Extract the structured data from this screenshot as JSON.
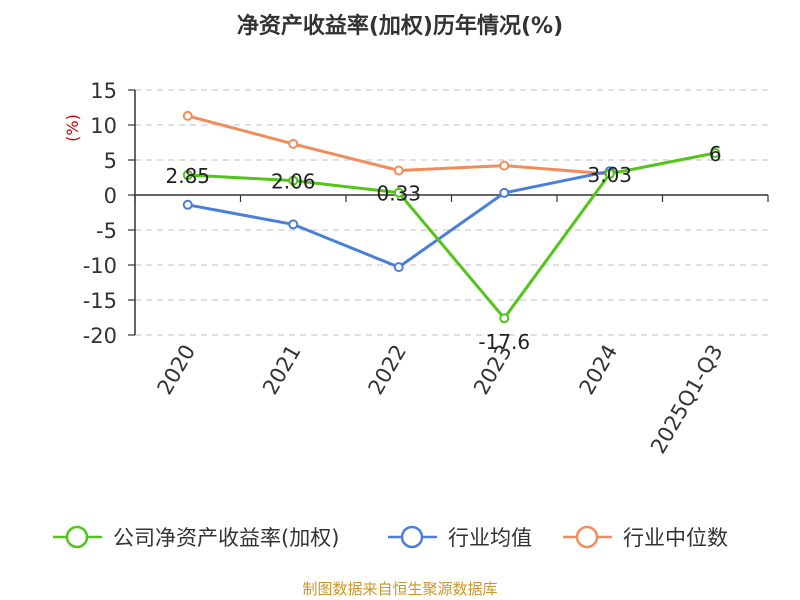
{
  "chart_data": {
    "type": "line",
    "title": "净资产收益率(加权)历年情况(%)",
    "ylabel": "(%)",
    "xlabel": "",
    "categories": [
      "2020",
      "2021",
      "2022",
      "2023",
      "2024",
      "2025Q1-Q3"
    ],
    "ylim": [
      -20,
      15
    ],
    "yticks": [
      15,
      10,
      5,
      0,
      -5,
      -10,
      -15,
      -20
    ],
    "grid": true,
    "legend_position": "bottom",
    "series": [
      {
        "name": "公司净资产收益率(加权)",
        "color": "#52c41a",
        "values": [
          2.85,
          2.06,
          0.33,
          -17.6,
          3.03,
          6
        ],
        "data_labels": [
          "2.85",
          "2.06",
          "0.33",
          "-17.6",
          "3.03",
          "6"
        ]
      },
      {
        "name": "行业均值",
        "color": "#4a7fd9",
        "values": [
          -1.4,
          -4.2,
          -10.3,
          0.3,
          3.4,
          null
        ]
      },
      {
        "name": "行业中位数",
        "color": "#f28c5a",
        "values": [
          11.3,
          7.3,
          3.5,
          4.2,
          3.0,
          null
        ]
      }
    ]
  },
  "footer": {
    "source": "制图数据来自恒生聚源数据库"
  }
}
